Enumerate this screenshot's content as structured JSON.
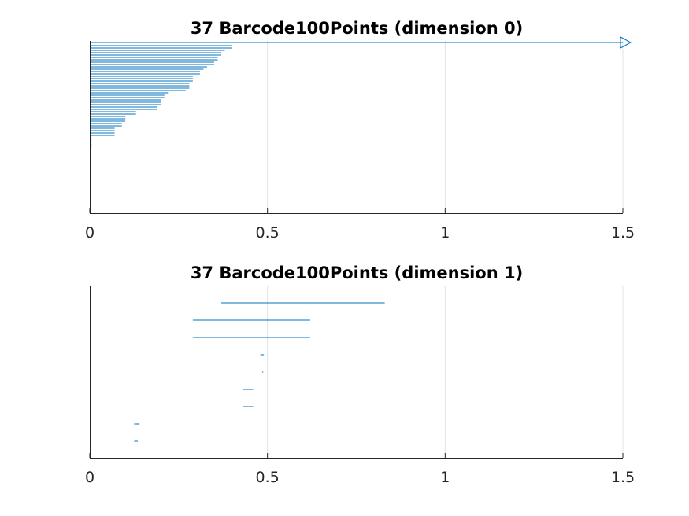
{
  "chart_data": [
    {
      "type": "barcode",
      "title": "37 Barcode100Points (dimension 0)",
      "xlabel": "",
      "ylabel": "",
      "xlim": [
        0,
        1.5
      ],
      "xticks": [
        0,
        0.5,
        1,
        1.5
      ],
      "xtick_labels": [
        "0",
        "0.5",
        "1",
        "1.5"
      ],
      "grid": true,
      "color": "#0072bd",
      "infinite_bar": {
        "birth": 0,
        "death": "Inf"
      },
      "intervals": [
        {
          "birth": 0,
          "death": 0.4
        },
        {
          "birth": 0,
          "death": 0.4
        },
        {
          "birth": 0,
          "death": 0.38
        },
        {
          "birth": 0,
          "death": 0.37
        },
        {
          "birth": 0,
          "death": 0.37
        },
        {
          "birth": 0,
          "death": 0.36
        },
        {
          "birth": 0,
          "death": 0.36
        },
        {
          "birth": 0,
          "death": 0.35
        },
        {
          "birth": 0,
          "death": 0.35
        },
        {
          "birth": 0,
          "death": 0.33
        },
        {
          "birth": 0,
          "death": 0.32
        },
        {
          "birth": 0,
          "death": 0.31
        },
        {
          "birth": 0,
          "death": 0.31
        },
        {
          "birth": 0,
          "death": 0.29
        },
        {
          "birth": 0,
          "death": 0.29
        },
        {
          "birth": 0,
          "death": 0.29
        },
        {
          "birth": 0,
          "death": 0.28
        },
        {
          "birth": 0,
          "death": 0.28
        },
        {
          "birth": 0,
          "death": 0.28
        },
        {
          "birth": 0,
          "death": 0.27
        },
        {
          "birth": 0,
          "death": 0.22
        },
        {
          "birth": 0,
          "death": 0.21
        },
        {
          "birth": 0,
          "death": 0.21
        },
        {
          "birth": 0,
          "death": 0.2
        },
        {
          "birth": 0,
          "death": 0.2
        },
        {
          "birth": 0,
          "death": 0.2
        },
        {
          "birth": 0,
          "death": 0.19
        },
        {
          "birth": 0,
          "death": 0.19
        },
        {
          "birth": 0,
          "death": 0.13
        },
        {
          "birth": 0,
          "death": 0.13
        },
        {
          "birth": 0,
          "death": 0.1
        },
        {
          "birth": 0,
          "death": 0.1
        },
        {
          "birth": 0,
          "death": 0.1
        },
        {
          "birth": 0,
          "death": 0.09
        },
        {
          "birth": 0,
          "death": 0.09
        },
        {
          "birth": 0,
          "death": 0.07
        },
        {
          "birth": 0,
          "death": 0.07
        },
        {
          "birth": 0,
          "death": 0.07
        },
        {
          "birth": 0,
          "death": 0.07
        },
        {
          "birth": 0,
          "death": 0.005
        },
        {
          "birth": 0,
          "death": 0.005
        },
        {
          "birth": 0,
          "death": 0.005
        },
        {
          "birth": 0,
          "death": 0.005
        },
        {
          "birth": 0,
          "death": 0.005
        }
      ]
    },
    {
      "type": "barcode",
      "title": "37 Barcode100Points (dimension 1)",
      "xlabel": "",
      "ylabel": "",
      "xlim": [
        0,
        1.5
      ],
      "xticks": [
        0,
        0.5,
        1,
        1.5
      ],
      "xtick_labels": [
        "0",
        "0.5",
        "1",
        "1.5"
      ],
      "grid": true,
      "color": "#0072bd",
      "intervals": [
        {
          "birth": 0.37,
          "death": 0.83
        },
        {
          "birth": 0.29,
          "death": 0.62
        },
        {
          "birth": 0.29,
          "death": 0.62
        },
        {
          "birth": 0.48,
          "death": 0.49
        },
        {
          "birth": 0.485,
          "death": 0.488
        },
        {
          "birth": 0.43,
          "death": 0.46
        },
        {
          "birth": 0.43,
          "death": 0.46
        },
        {
          "birth": 0.125,
          "death": 0.14
        },
        {
          "birth": 0.125,
          "death": 0.135
        }
      ]
    }
  ]
}
